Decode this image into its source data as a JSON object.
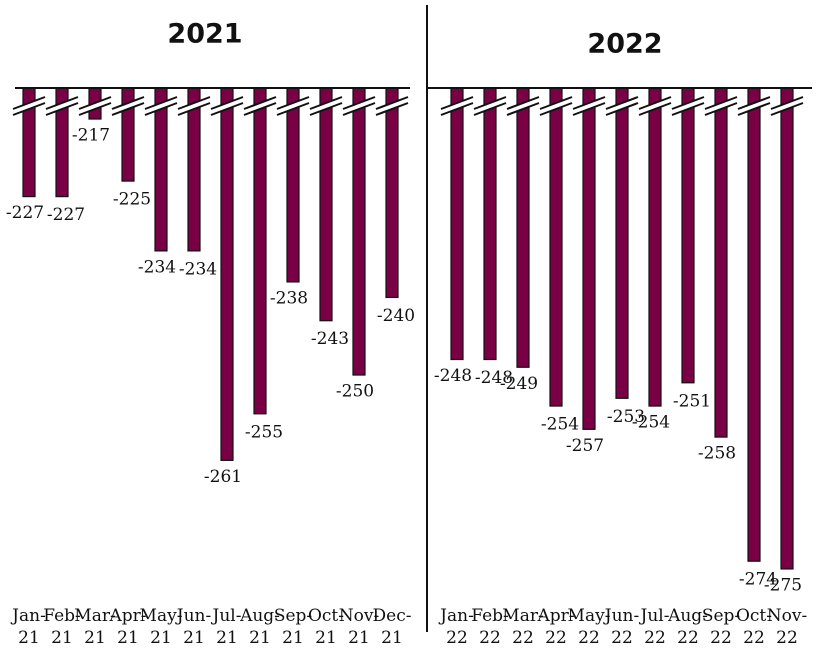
{
  "chart_data": [
    {
      "type": "bar",
      "title": "2021",
      "categories": [
        "Jan-21",
        "Feb-21",
        "Mar-21",
        "Apr-21",
        "May-21",
        "Jun-21",
        "Jul-21",
        "Aug-21",
        "Sep-21",
        "Oct-21",
        "Nov-21",
        "Dec-21"
      ],
      "values": [
        -227,
        -227,
        -217,
        -225,
        -234,
        -234,
        -261,
        -255,
        -238,
        -243,
        -250,
        -240
      ],
      "color": "#7a0046",
      "ylim": [
        -279,
        -213
      ],
      "axis_break": true
    },
    {
      "type": "bar",
      "title": "2022",
      "categories": [
        "Jan-22",
        "Feb-22",
        "Mar-22",
        "Apr-22",
        "May-22",
        "Jun-22",
        "Jul-22",
        "Aug-22",
        "Sep-22",
        "Oct-22",
        "Nov-22"
      ],
      "values": [
        -248,
        -248,
        -249,
        -254,
        -257,
        -253,
        -254,
        -251,
        -258,
        -274,
        -275
      ],
      "color": "#7a0046",
      "ylim": [
        -279,
        -213
      ],
      "axis_break": true
    }
  ]
}
